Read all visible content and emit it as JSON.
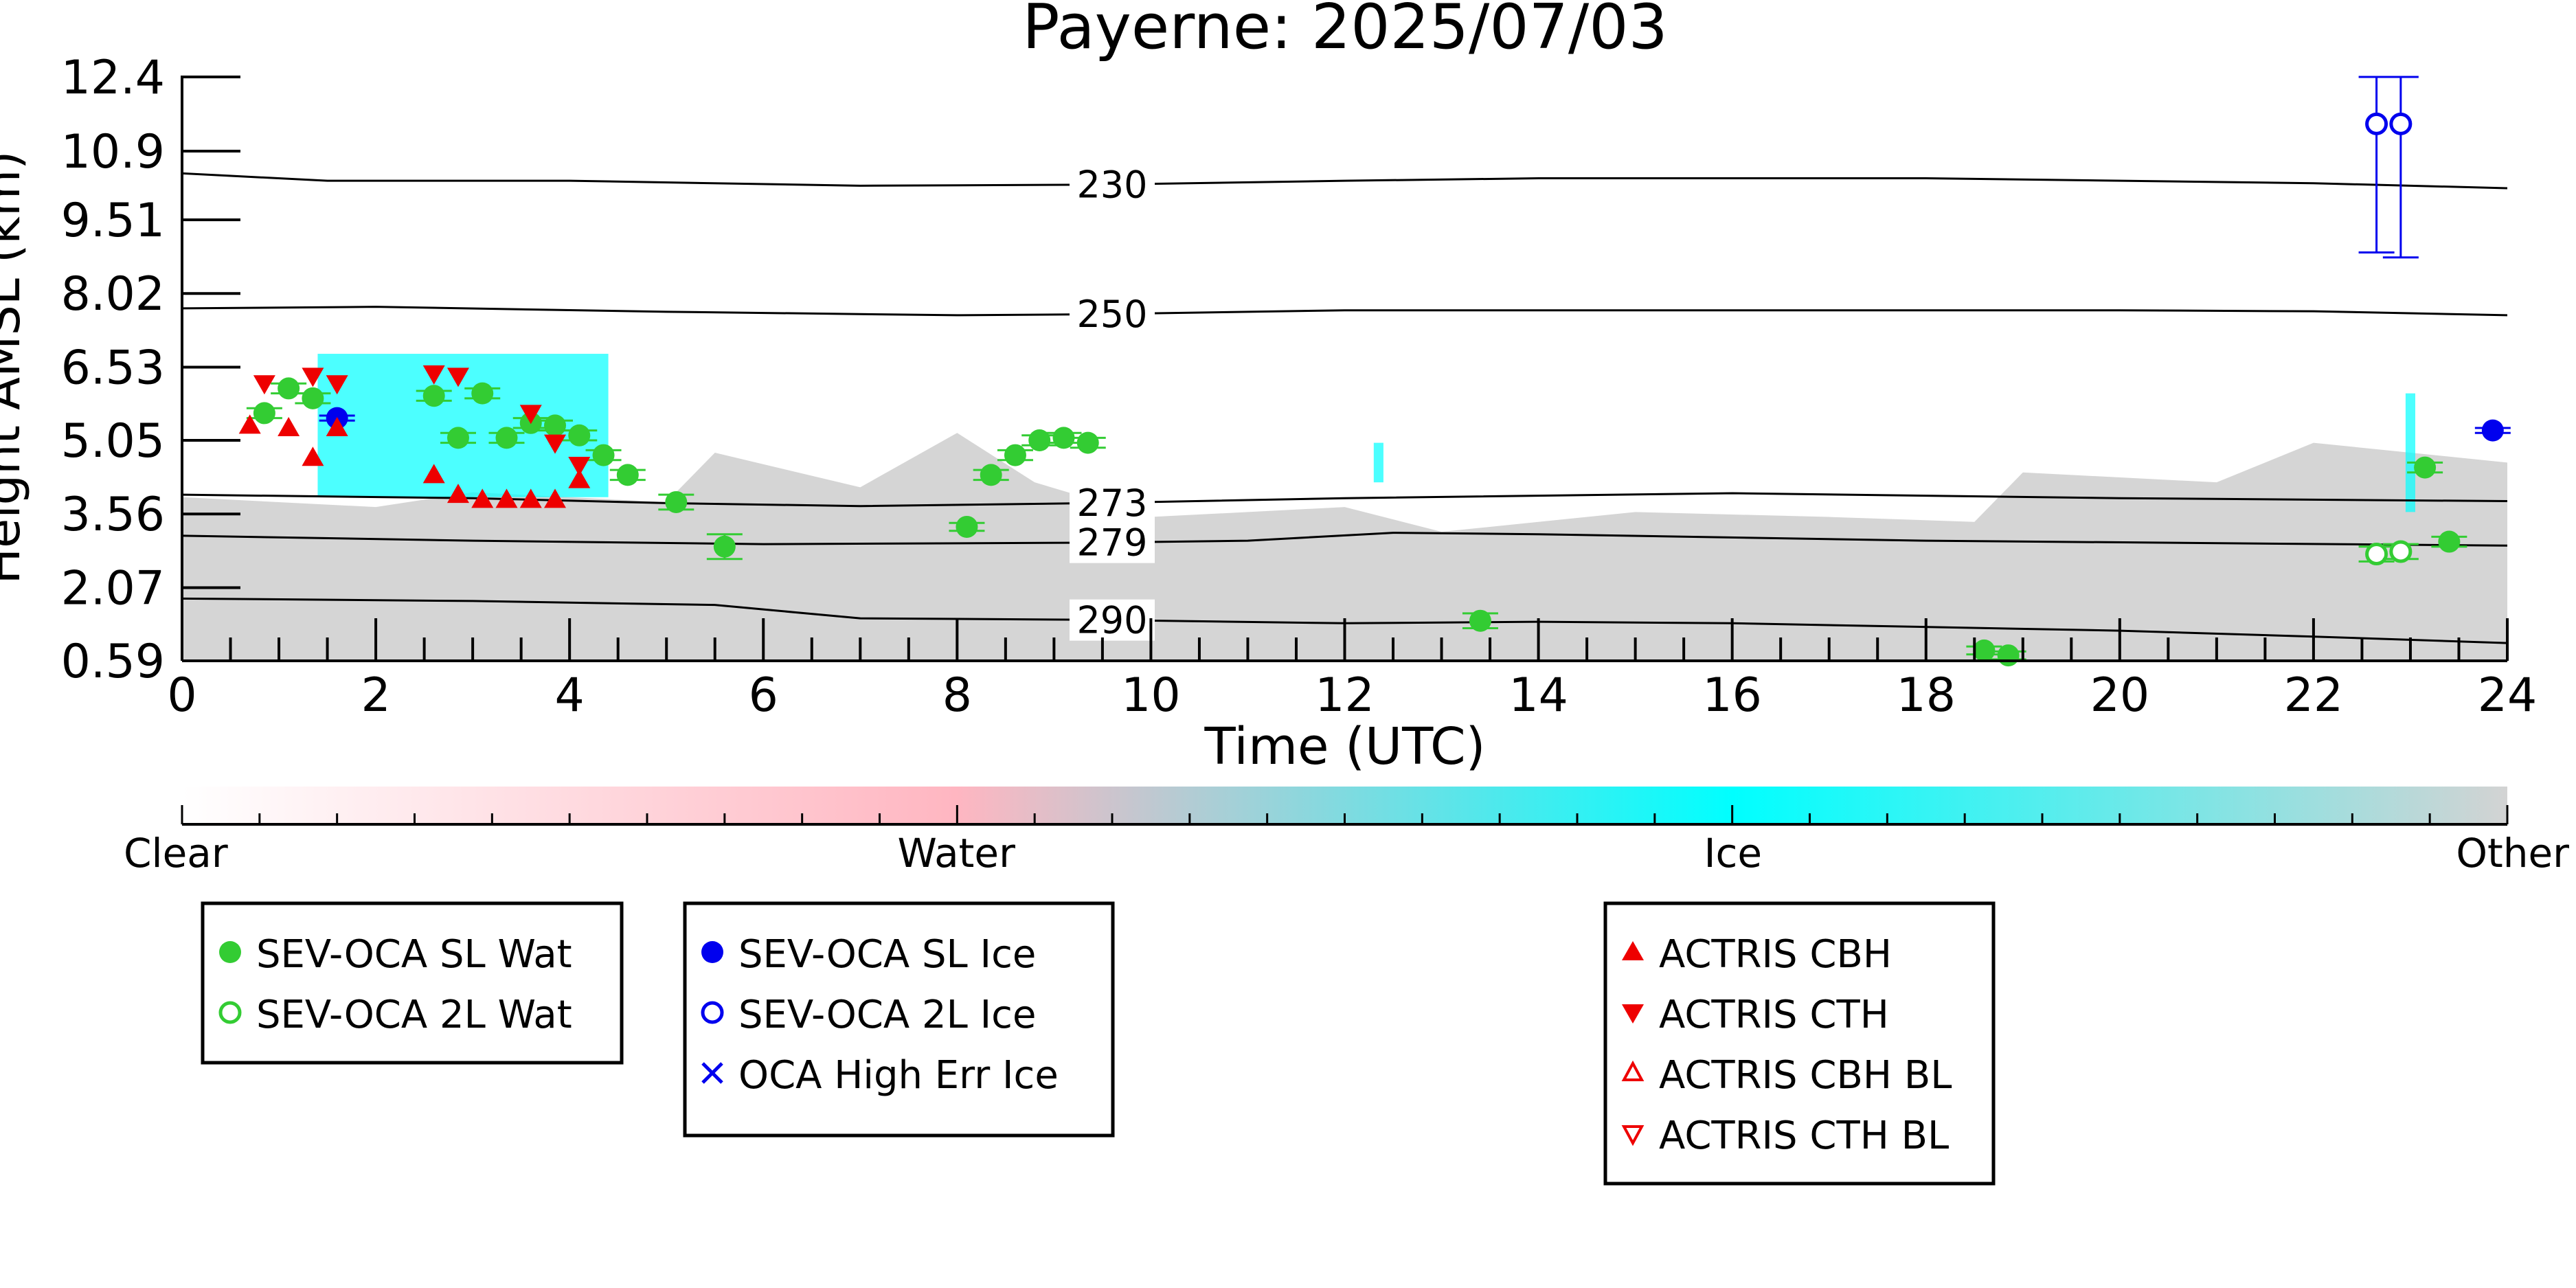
{
  "chart_data": {
    "type": "scatter",
    "title": "Payerne: 2025/07/03",
    "xlabel": "Time (UTC)",
    "ylabel": "Height AMSL (km)",
    "xlim": [
      0,
      24
    ],
    "ylim": [
      0.59,
      12.4
    ],
    "x_ticks": [
      0,
      2,
      4,
      6,
      8,
      10,
      12,
      14,
      16,
      18,
      20,
      22,
      24
    ],
    "y_ticks": [
      "0.59",
      "2.07",
      "3.56",
      "5.05",
      "6.53",
      "8.02",
      "9.51",
      "10.9",
      "12.4"
    ],
    "grid": false,
    "colorbar": {
      "labels": [
        {
          "text": "Clear",
          "pos": 0.0
        },
        {
          "text": "Water",
          "pos": 0.333
        },
        {
          "text": "Ice",
          "pos": 0.667
        },
        {
          "text": "Other",
          "pos": 1.0
        }
      ],
      "stops": [
        {
          "pos": 0.0,
          "color": "#ffffff"
        },
        {
          "pos": 0.333,
          "color": "#ffb6c1"
        },
        {
          "pos": 0.667,
          "color": "#00ffff"
        },
        {
          "pos": 1.0,
          "color": "#d3d3d3"
        }
      ]
    },
    "legends": [
      {
        "entries": [
          {
            "label": "SEV-OCA SL Wat",
            "marker": "circle-filled",
            "color": "#33cc33"
          },
          {
            "label": "SEV-OCA 2L Wat",
            "marker": "circle-open",
            "color": "#33cc33"
          }
        ]
      },
      {
        "entries": [
          {
            "label": "SEV-OCA SL Ice",
            "marker": "circle-filled",
            "color": "#0000ee"
          },
          {
            "label": "SEV-OCA 2L Ice",
            "marker": "circle-open",
            "color": "#0000ee"
          },
          {
            "label": "OCA High Err Ice",
            "marker": "x",
            "color": "#0000ee"
          }
        ]
      },
      {
        "entries": [
          {
            "label": "ACTRIS CBH",
            "marker": "triangle-up-filled",
            "color": "#ee0000"
          },
          {
            "label": "ACTRIS CTH",
            "marker": "triangle-down-filled",
            "color": "#ee0000"
          },
          {
            "label": "ACTRIS CBH BL",
            "marker": "triangle-up-open",
            "color": "#ee0000"
          },
          {
            "label": "ACTRIS CTH BL",
            "marker": "triangle-down-open",
            "color": "#ee0000"
          }
        ]
      }
    ],
    "isotherms": [
      {
        "label": "230",
        "label_x": 9.6,
        "points": [
          [
            0,
            10.45
          ],
          [
            1.5,
            10.3
          ],
          [
            4,
            10.3
          ],
          [
            7,
            10.2
          ],
          [
            9.4,
            10.22
          ],
          [
            12,
            10.3
          ],
          [
            14,
            10.35
          ],
          [
            18,
            10.35
          ],
          [
            22,
            10.25
          ],
          [
            24,
            10.15
          ]
        ]
      },
      {
        "label": "250",
        "label_x": 9.6,
        "points": [
          [
            0,
            7.72
          ],
          [
            2,
            7.75
          ],
          [
            5,
            7.65
          ],
          [
            8,
            7.58
          ],
          [
            9.4,
            7.6
          ],
          [
            12,
            7.68
          ],
          [
            16,
            7.68
          ],
          [
            20,
            7.68
          ],
          [
            22,
            7.66
          ],
          [
            24,
            7.58
          ]
        ]
      },
      {
        "label": "273",
        "label_x": 9.6,
        "points": [
          [
            0,
            3.95
          ],
          [
            3,
            3.88
          ],
          [
            5,
            3.78
          ],
          [
            7,
            3.72
          ],
          [
            9.4,
            3.78
          ],
          [
            12,
            3.88
          ],
          [
            16,
            3.98
          ],
          [
            20,
            3.88
          ],
          [
            24,
            3.82
          ]
        ]
      },
      {
        "label": "279",
        "label_x": 9.6,
        "points": [
          [
            0,
            3.12
          ],
          [
            3,
            3.02
          ],
          [
            6,
            2.95
          ],
          [
            9.4,
            2.98
          ],
          [
            11,
            3.02
          ],
          [
            12.5,
            3.18
          ],
          [
            14,
            3.15
          ],
          [
            18,
            3.02
          ],
          [
            24,
            2.92
          ]
        ]
      },
      {
        "label": "290",
        "label_x": 9.6,
        "points": [
          [
            0,
            1.85
          ],
          [
            3,
            1.8
          ],
          [
            5.5,
            1.72
          ],
          [
            7,
            1.45
          ],
          [
            9.4,
            1.42
          ],
          [
            12,
            1.35
          ],
          [
            14,
            1.38
          ],
          [
            16,
            1.35
          ],
          [
            20,
            1.2
          ],
          [
            22,
            1.08
          ],
          [
            24,
            0.95
          ]
        ]
      }
    ],
    "series": [
      {
        "name": "SEV-OCA SL Wat",
        "marker": "circle-filled",
        "color": "#33cc33",
        "points": [
          [
            0.85,
            5.6
          ],
          [
            1.1,
            6.1
          ],
          [
            1.35,
            5.9
          ],
          [
            2.6,
            5.95
          ],
          [
            2.85,
            5.1
          ],
          [
            3.1,
            6.0
          ],
          [
            3.35,
            5.1
          ],
          [
            3.6,
            5.4
          ],
          [
            3.85,
            5.35
          ],
          [
            4.1,
            5.15
          ],
          [
            4.35,
            4.75
          ],
          [
            4.6,
            4.35
          ],
          [
            5.1,
            3.8
          ],
          [
            5.6,
            2.9
          ],
          [
            8.1,
            3.3
          ],
          [
            8.35,
            4.35
          ],
          [
            8.6,
            4.75
          ],
          [
            8.85,
            5.05
          ],
          [
            9.1,
            5.1
          ],
          [
            9.35,
            5.0
          ],
          [
            13.4,
            1.4
          ],
          [
            18.6,
            0.8
          ],
          [
            18.85,
            0.7
          ],
          [
            23.15,
            4.5
          ],
          [
            23.4,
            3.0
          ]
        ],
        "yerr": [
          0.1,
          0.1,
          0.1,
          0.1,
          0.1,
          0.1,
          0.1,
          0.1,
          0.1,
          0.1,
          0.1,
          0.1,
          0.15,
          0.25,
          0.08,
          0.1,
          0.1,
          0.1,
          0.1,
          0.1,
          0.15,
          0.08,
          0.08,
          0.1,
          0.1
        ]
      },
      {
        "name": "SEV-OCA 2L Wat",
        "marker": "circle-open",
        "color": "#33cc33",
        "points": [
          [
            22.65,
            2.75
          ],
          [
            22.9,
            2.8
          ]
        ],
        "yerr": [
          0.15,
          0.15
        ]
      },
      {
        "name": "SEV-OCA SL Ice",
        "marker": "circle-filled",
        "color": "#0000ee",
        "points": [
          [
            1.6,
            5.5
          ],
          [
            23.85,
            5.25
          ]
        ],
        "yerr": [
          0.05,
          0.05
        ]
      },
      {
        "name": "SEV-OCA 2L Ice",
        "marker": "circle-open",
        "color": "#0000ee",
        "points": [
          [
            22.65,
            11.45
          ],
          [
            22.9,
            11.45
          ]
        ],
        "yerr_low": [
          2.6,
          2.7
        ],
        "yerr_high": [
          0.95,
          0.95
        ]
      },
      {
        "name": "ACTRIS CBH",
        "marker": "triangle-up-filled",
        "color": "#ee0000",
        "points": [
          [
            0.7,
            5.35
          ],
          [
            1.1,
            5.3
          ],
          [
            1.35,
            4.7
          ],
          [
            1.6,
            5.3
          ],
          [
            2.6,
            4.35
          ],
          [
            2.85,
            3.95
          ],
          [
            3.1,
            3.85
          ],
          [
            3.35,
            3.85
          ],
          [
            3.6,
            3.85
          ],
          [
            3.85,
            3.85
          ],
          [
            4.1,
            4.25
          ]
        ]
      },
      {
        "name": "ACTRIS CTH",
        "marker": "triangle-down-filled",
        "color": "#ee0000",
        "points": [
          [
            0.85,
            6.2
          ],
          [
            1.35,
            6.35
          ],
          [
            1.6,
            6.2
          ],
          [
            2.6,
            6.4
          ],
          [
            2.85,
            6.35
          ],
          [
            3.6,
            5.6
          ],
          [
            3.85,
            5.0
          ],
          [
            4.1,
            4.55
          ]
        ]
      }
    ],
    "shading": [
      {
        "class": "Other",
        "color": "#d3d3d3",
        "t0": 0,
        "t1": 24,
        "y0": 0.59,
        "profile": [
          [
            0,
            3.9
          ],
          [
            2,
            3.7
          ],
          [
            3,
            4.0
          ],
          [
            5,
            3.8
          ],
          [
            5.5,
            4.8
          ],
          [
            7,
            4.1
          ],
          [
            8,
            5.2
          ],
          [
            8.8,
            4.2
          ],
          [
            10,
            3.5
          ],
          [
            12,
            3.7
          ],
          [
            13,
            3.2
          ],
          [
            15,
            3.6
          ],
          [
            17,
            3.5
          ],
          [
            18.5,
            3.4
          ],
          [
            19,
            4.4
          ],
          [
            21,
            4.2
          ],
          [
            22,
            5.0
          ],
          [
            24,
            4.6
          ]
        ]
      },
      {
        "class": "Ice",
        "color": "#00ffff",
        "t0": 1.4,
        "t1": 4.4,
        "y0": 3.9,
        "y1": 6.8
      },
      {
        "class": "Ice",
        "color": "#00ffff",
        "t0": 22.95,
        "t1": 23.05,
        "y0": 3.6,
        "y1": 6.0
      },
      {
        "class": "Ice",
        "color": "#00ffff",
        "t0": 12.3,
        "t1": 12.4,
        "y0": 4.2,
        "y1": 5.0
      }
    ]
  }
}
